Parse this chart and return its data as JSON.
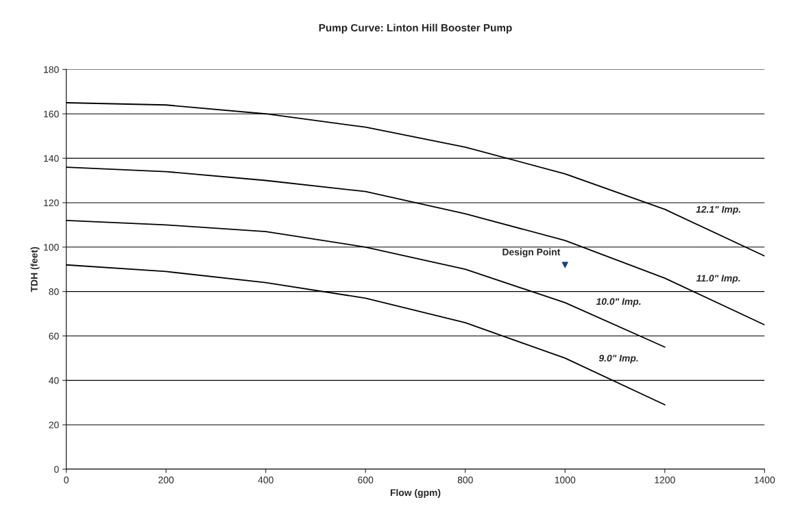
{
  "chart_data": {
    "type": "line",
    "title": "Pump Curve: Linton Hill Booster Pump",
    "xlabel": "Flow (gpm)",
    "ylabel": "TDH (feet)",
    "xlim": [
      0,
      1400
    ],
    "xticks": [
      0,
      200,
      400,
      600,
      800,
      1000,
      1200,
      1400
    ],
    "ylim": [
      0,
      180
    ],
    "yticks": [
      0,
      20,
      40,
      60,
      80,
      100,
      120,
      140,
      160,
      180
    ],
    "grid": "y",
    "legend": false,
    "marker": "none",
    "line_style": "solid",
    "series": [
      {
        "name": "12.1\" Imp.",
        "color": "#000000",
        "x": [
          0,
          200,
          400,
          600,
          800,
          1000,
          1200,
          1400
        ],
        "values": [
          165,
          164,
          160,
          154,
          145,
          133,
          117,
          96
        ]
      },
      {
        "name": "11.0\" Imp.",
        "color": "#000000",
        "x": [
          0,
          200,
          400,
          600,
          800,
          1000,
          1200,
          1400
        ],
        "values": [
          136,
          134,
          130,
          125,
          115,
          103,
          86,
          65
        ]
      },
      {
        "name": "10.0\" Imp.",
        "color": "#000000",
        "x": [
          0,
          200,
          400,
          600,
          800,
          1000,
          1200
        ],
        "values": [
          112,
          110,
          107,
          100,
          90,
          75,
          55
        ]
      },
      {
        "name": "9.0\" Imp.",
        "color": "#000000",
        "x": [
          0,
          200,
          400,
          600,
          800,
          1000,
          1200
        ],
        "values": [
          92,
          89,
          84,
          77,
          66,
          50,
          29
        ]
      },
      {
        "name": "Design Point",
        "type": "scatter",
        "marker": "triangle",
        "color": "#1f3f7f",
        "x": [
          1000
        ],
        "values": [
          92
        ]
      }
    ]
  }
}
